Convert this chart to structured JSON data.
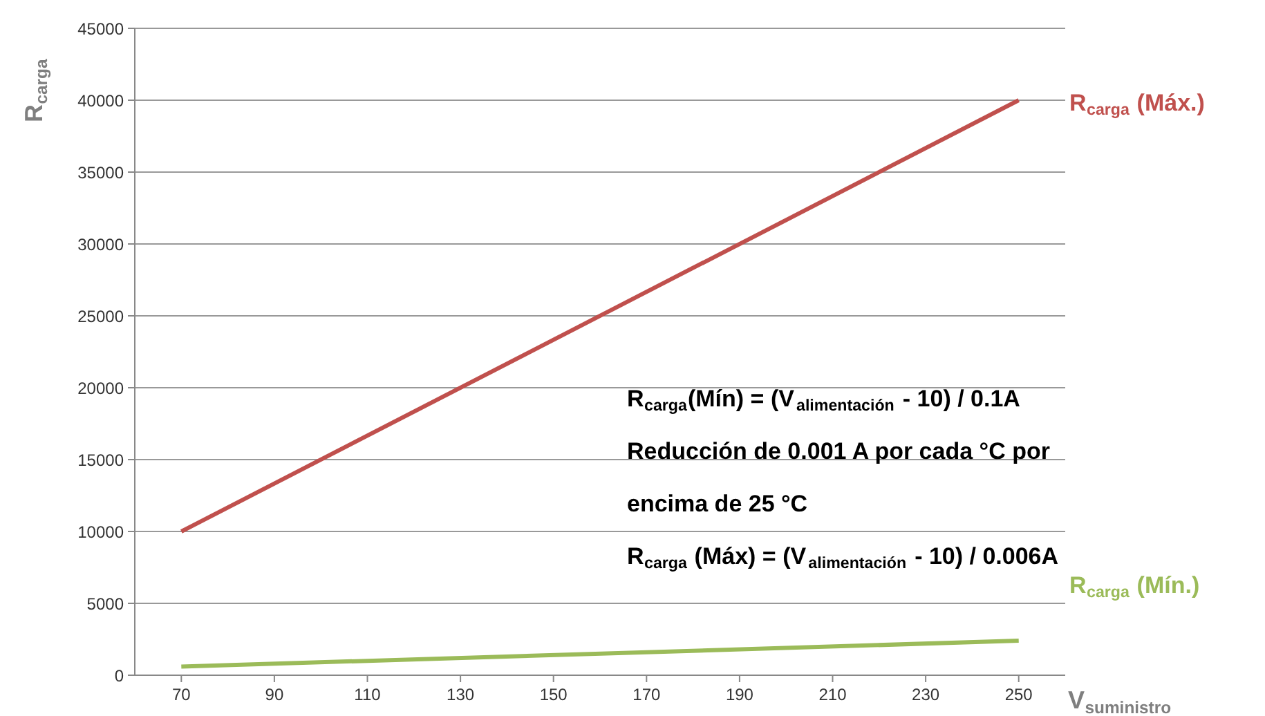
{
  "chart_data": {
    "type": "line",
    "x": [
      70,
      250
    ],
    "series": [
      {
        "name": "R$_{carga}$ (Máx.)",
        "color": "#c0504d",
        "values": [
          10000,
          40000
        ]
      },
      {
        "name": "R$_{carga}$ (Mín.)",
        "color": "#9bbb59",
        "values": [
          600,
          2400
        ]
      }
    ],
    "xlabel": "V$_{suministro}$",
    "ylabel": "R$_{carga}$",
    "xlim": [
      60,
      260
    ],
    "xticks": [
      70,
      90,
      110,
      130,
      150,
      170,
      190,
      210,
      230,
      250
    ],
    "ylim": [
      0,
      45000
    ],
    "yticks": [
      0,
      5000,
      10000,
      15000,
      20000,
      25000,
      30000,
      35000,
      40000,
      45000
    ],
    "grid": "y",
    "marker": "none",
    "line_style": "solid",
    "annotations": [
      "R$_{carga}$(Mín) = (V$_{alimentación}$ - 10) / 0.1A",
      "Reducción de 0.001 A por cada °C por",
      "encima de 25 °C",
      "R$_{carga}$ (Máx) = (V$_{alimentación}$ - 10) / 0.006A"
    ]
  }
}
